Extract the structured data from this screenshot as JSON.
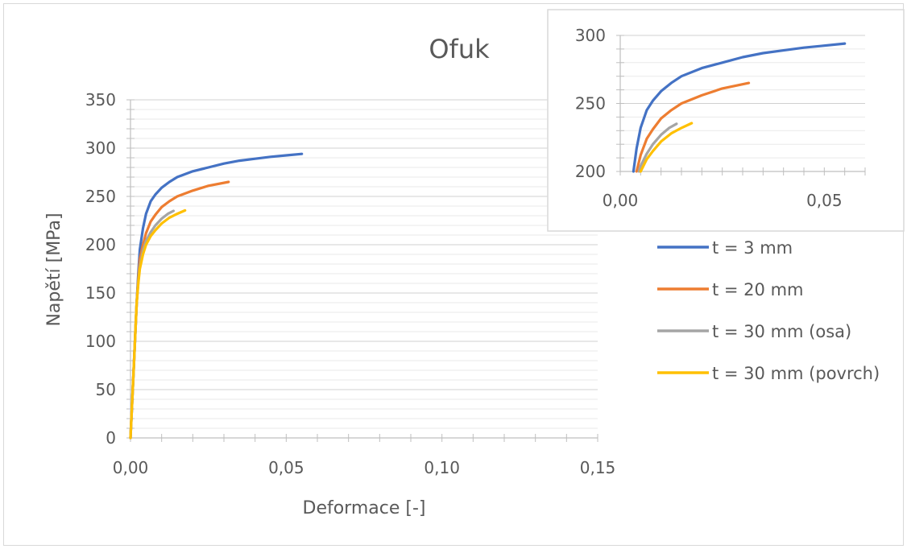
{
  "chart_data": [
    {
      "type": "line",
      "title": "Ofuk",
      "xlabel": "Deformace [-]",
      "ylabel": "Napětí [MPa]",
      "xlim": [
        0,
        0.15
      ],
      "ylim": [
        0,
        350
      ],
      "x_ticks": [
        0,
        0.05,
        0.1,
        0.15
      ],
      "x_tick_labels": [
        "0,00",
        "0,05",
        "0,10",
        "0,15"
      ],
      "y_ticks": [
        0,
        50,
        100,
        150,
        200,
        250,
        300,
        350
      ],
      "y_tick_labels": [
        "0",
        "50",
        "100",
        "150",
        "200",
        "250",
        "300",
        "350"
      ],
      "grid": true,
      "legend_position": "right",
      "series": [
        {
          "name": "t = 3 mm",
          "color": "#4472c4",
          "points": [
            [
              0,
              0
            ],
            [
              0.001,
              70
            ],
            [
              0.0015,
              105
            ],
            [
              0.002,
              140
            ],
            [
              0.0025,
              170
            ],
            [
              0.003,
              195
            ],
            [
              0.004,
              217
            ],
            [
              0.005,
              232
            ],
            [
              0.0065,
              245
            ],
            [
              0.008,
              252
            ],
            [
              0.01,
              259
            ],
            [
              0.0125,
              265
            ],
            [
              0.015,
              270
            ],
            [
              0.02,
              276
            ],
            [
              0.025,
              280
            ],
            [
              0.03,
              284
            ],
            [
              0.035,
              287
            ],
            [
              0.04,
              289
            ],
            [
              0.045,
              291
            ],
            [
              0.05,
              292.5
            ],
            [
              0.055,
              294
            ]
          ]
        },
        {
          "name": "t = 20 mm",
          "color": "#ed7d31",
          "points": [
            [
              0,
              0
            ],
            [
              0.001,
              70
            ],
            [
              0.0015,
              105
            ],
            [
              0.002,
              140
            ],
            [
              0.0025,
              165
            ],
            [
              0.003,
              185
            ],
            [
              0.004,
              200
            ],
            [
              0.005,
              212
            ],
            [
              0.0065,
              224
            ],
            [
              0.008,
              231
            ],
            [
              0.01,
              239
            ],
            [
              0.0125,
              245
            ],
            [
              0.015,
              250
            ],
            [
              0.02,
              256
            ],
            [
              0.025,
              261
            ],
            [
              0.0315,
              265
            ]
          ]
        },
        {
          "name": "t = 30 mm (osa)",
          "color": "#a5a5a5",
          "points": [
            [
              0,
              0
            ],
            [
              0.001,
              70
            ],
            [
              0.0015,
              105
            ],
            [
              0.002,
              140
            ],
            [
              0.0025,
              162
            ],
            [
              0.003,
              178
            ],
            [
              0.004,
              194
            ],
            [
              0.005,
              204
            ],
            [
              0.0065,
              213
            ],
            [
              0.008,
              220
            ],
            [
              0.01,
              227
            ],
            [
              0.012,
              232
            ],
            [
              0.0138,
              235
            ]
          ]
        },
        {
          "name": "t = 30 mm (povrch)",
          "color": "#ffc000",
          "points": [
            [
              0,
              0
            ],
            [
              0.001,
              70
            ],
            [
              0.0015,
              105
            ],
            [
              0.002,
              140
            ],
            [
              0.0025,
              160
            ],
            [
              0.003,
              175
            ],
            [
              0.004,
              190
            ],
            [
              0.005,
              200
            ],
            [
              0.0065,
              209
            ],
            [
              0.008,
              215
            ],
            [
              0.01,
              222
            ],
            [
              0.0125,
              228
            ],
            [
              0.015,
              232
            ],
            [
              0.0175,
              235.5
            ]
          ]
        }
      ]
    },
    {
      "type": "line",
      "title": "",
      "xlim": [
        0,
        0.06
      ],
      "ylim": [
        200,
        300
      ],
      "x_ticks": [
        0,
        0.05
      ],
      "x_tick_labels": [
        "0,00",
        "0,05"
      ],
      "y_ticks": [
        200,
        250,
        300
      ],
      "y_tick_labels": [
        "200",
        "250",
        "300"
      ],
      "grid": true
    }
  ]
}
